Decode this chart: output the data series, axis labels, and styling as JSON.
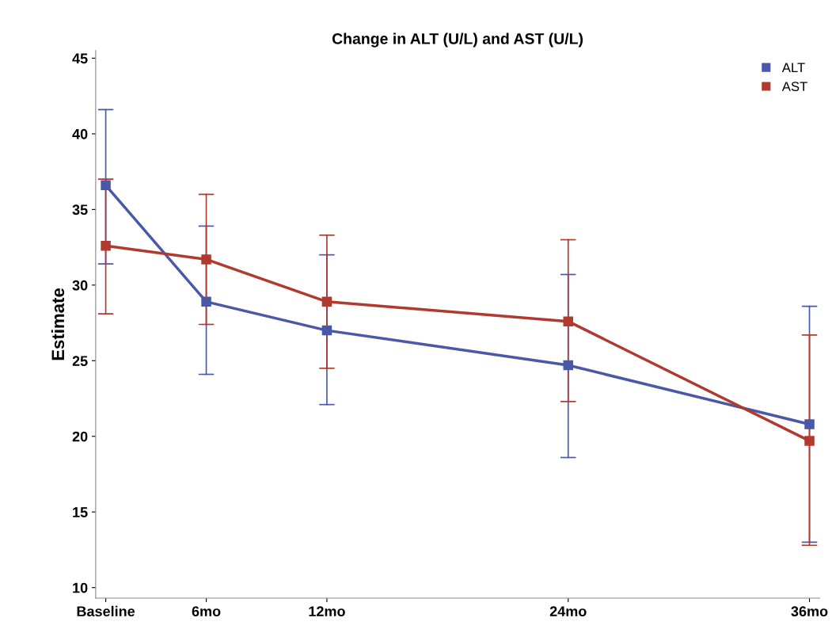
{
  "chart_data": {
    "type": "line",
    "title": "Change in ALT (U/L) and AST (U/L)",
    "ylabel": "Estimate",
    "x": [
      1,
      6,
      12,
      24,
      36
    ],
    "xlim": [
      0.5,
      36.5
    ],
    "xticks": [
      {
        "value": 1,
        "label": "Baseline"
      },
      {
        "value": 6,
        "label": "6mo"
      },
      {
        "value": 12,
        "label": "12mo"
      },
      {
        "value": 24,
        "label": "24mo"
      },
      {
        "value": 36,
        "label": "36mo"
      }
    ],
    "ylim": [
      9.3,
      45.5
    ],
    "yticks": [
      10,
      15,
      20,
      25,
      30,
      35,
      40,
      45
    ],
    "grid": false,
    "legend": "top right",
    "marker": "square",
    "line_style": "solid",
    "series": [
      {
        "name": "ALT",
        "color": "#4a58a8",
        "values": [
          36.6,
          28.9,
          27.0,
          24.7,
          20.8
        ],
        "errors": [
          [
            31.4,
            41.6
          ],
          [
            24.1,
            33.9
          ],
          [
            22.1,
            32.0
          ],
          [
            18.6,
            30.7
          ],
          [
            13.0,
            28.6
          ]
        ]
      },
      {
        "name": "AST",
        "color": "#b03a30",
        "values": [
          32.6,
          31.7,
          28.9,
          27.6,
          19.7
        ],
        "errors": [
          [
            28.1,
            37.0
          ],
          [
            27.4,
            36.0
          ],
          [
            24.5,
            33.3
          ],
          [
            22.3,
            33.0
          ],
          [
            12.8,
            26.7
          ]
        ]
      }
    ]
  }
}
